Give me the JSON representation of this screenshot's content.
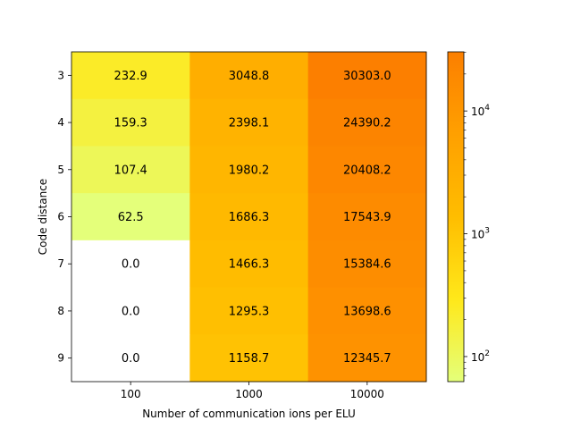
{
  "chart_data": {
    "type": "heatmap",
    "xlabel": "Number of communication ions per ELU",
    "ylabel": "Code distance",
    "x_categories": [
      "100",
      "1000",
      "10000"
    ],
    "y_categories": [
      "3",
      "4",
      "5",
      "6",
      "7",
      "8",
      "9"
    ],
    "values": [
      [
        232.9,
        3048.8,
        30303.0
      ],
      [
        159.3,
        2398.1,
        24390.2
      ],
      [
        107.4,
        1980.2,
        20408.2
      ],
      [
        62.5,
        1686.3,
        17543.9
      ],
      [
        0.0,
        1466.3,
        15384.6
      ],
      [
        0.0,
        1295.3,
        13698.6
      ],
      [
        0.0,
        1158.7,
        12345.7
      ]
    ],
    "cell_labels": [
      [
        "232.9",
        "3048.8",
        "30303.0"
      ],
      [
        "159.3",
        "2398.1",
        "24390.2"
      ],
      [
        "107.4",
        "1980.2",
        "20408.2"
      ],
      [
        "62.5",
        "1686.3",
        "17543.9"
      ],
      [
        "0.0",
        "1466.3",
        "15384.6"
      ],
      [
        "0.0",
        "1295.3",
        "13698.6"
      ],
      [
        "0.0",
        "1158.7",
        "12345.7"
      ]
    ],
    "colorbar": {
      "scale": "log",
      "range": [
        62.5,
        30303.0
      ],
      "ticks": [
        {
          "value": 100,
          "base": "10",
          "exp": "2"
        },
        {
          "value": 1000,
          "base": "10",
          "exp": "3"
        },
        {
          "value": 10000,
          "base": "10",
          "exp": "4"
        }
      ],
      "colormap": "Wistia",
      "colormap_stops": [
        "#e4ff7a",
        "#ffe81a",
        "#ffbd00",
        "#ffa000",
        "#fc7f00"
      ],
      "masked_value": 0.0,
      "masked_color": "#ffffff"
    }
  }
}
